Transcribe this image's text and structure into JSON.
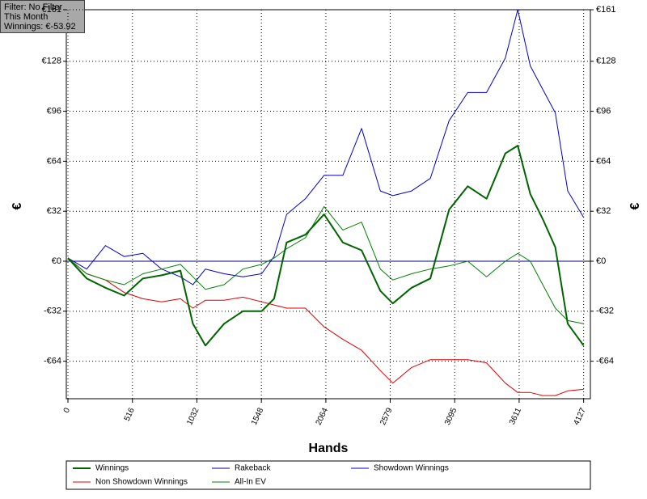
{
  "chart_data": {
    "type": "line",
    "annotations": [
      "Filter: No Filter",
      "This Month",
      "Winnings: €-53.92"
    ],
    "xlabel": "Hands",
    "ylabel": "€",
    "xlim": [
      -13,
      4181
    ],
    "ylim": [
      -88,
      161
    ],
    "xticks": [
      0,
      516,
      1032,
      1548,
      2064,
      2579,
      3095,
      3611,
      4127
    ],
    "yticks": [
      {
        "value": -64,
        "label": "-€64"
      },
      {
        "value": -32,
        "label": "-€32"
      },
      {
        "value": 0,
        "label": "€0"
      },
      {
        "value": 32,
        "label": "€32"
      },
      {
        "value": 64,
        "label": "€64"
      },
      {
        "value": 96,
        "label": "€96"
      },
      {
        "value": 128,
        "label": "€128"
      },
      {
        "value": 161,
        "label": "€161"
      }
    ],
    "grid": true,
    "legend": "bottom",
    "x": [
      0,
      150,
      300,
      450,
      600,
      750,
      900,
      1000,
      1100,
      1250,
      1400,
      1550,
      1650,
      1750,
      1900,
      2050,
      2200,
      2350,
      2500,
      2600,
      2750,
      2900,
      3050,
      3200,
      3350,
      3500,
      3600,
      3700,
      3800,
      3900,
      4000,
      4127
    ],
    "series": [
      {
        "name": "Winnings",
        "color": "#006400",
        "width": 2,
        "values": [
          2,
          -11,
          -17,
          -22,
          -11,
          -9,
          -6,
          -40,
          -54,
          -40,
          -32,
          -32,
          -24,
          12,
          17,
          30,
          12,
          7,
          -19,
          -27,
          -17,
          -11,
          33,
          48,
          40,
          69,
          74,
          43,
          27,
          9,
          -40,
          -54
        ]
      },
      {
        "name": "Rakeback",
        "color": "#000080",
        "width": 1,
        "values": [
          0,
          0,
          0,
          0,
          0,
          0,
          0,
          0,
          0,
          0,
          0,
          0,
          0,
          0,
          0,
          0,
          0,
          0,
          0,
          0,
          0,
          0,
          0,
          0,
          0,
          0,
          0,
          0,
          0,
          0,
          0,
          0
        ]
      },
      {
        "name": "Showdown Winnings",
        "color": "#0000cc",
        "width": 1,
        "values": [
          2,
          -5,
          10,
          3,
          5,
          -5,
          -10,
          -15,
          -5,
          -8,
          -10,
          -8,
          3,
          30,
          40,
          55,
          55,
          85,
          45,
          42,
          45,
          53,
          90,
          108,
          108,
          130,
          161,
          125,
          110,
          95,
          45,
          28
        ]
      },
      {
        "name": "Non Showdown Winnings",
        "color": "#e00000",
        "width": 1,
        "values": [
          2,
          -8,
          -12,
          -20,
          -24,
          -26,
          -24,
          -30,
          -25,
          -25,
          -23,
          -26,
          -28,
          -30,
          -30,
          -42,
          -50,
          -57,
          -70,
          -78,
          -68,
          -63,
          -63,
          -63,
          -65,
          -78,
          -84,
          -84,
          -86,
          -86,
          -83,
          -82
        ]
      },
      {
        "name": "All-In EV",
        "color": "#008000",
        "width": 1,
        "values": [
          2,
          -8,
          -12,
          -15,
          -8,
          -5,
          -2,
          -10,
          -18,
          -15,
          -5,
          -2,
          2,
          8,
          15,
          35,
          20,
          25,
          -5,
          -12,
          -8,
          -5,
          -3,
          0,
          -10,
          0,
          5,
          0,
          -15,
          -30,
          -38,
          -40
        ]
      }
    ]
  }
}
